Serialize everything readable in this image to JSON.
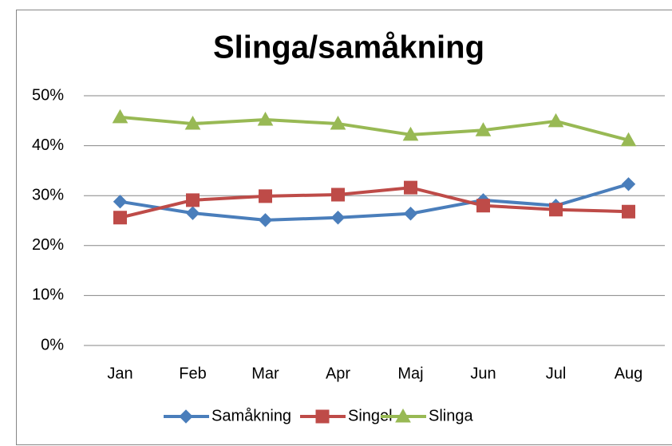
{
  "chart_data": {
    "type": "line",
    "title": "Slinga/samåkning",
    "categories": [
      "Jan",
      "Feb",
      "Mar",
      "Apr",
      "Maj",
      "Jun",
      "Jul",
      "Aug"
    ],
    "series": [
      {
        "name": "Samåkning",
        "color": "#4a7ebb",
        "marker": "diamond",
        "values": [
          28.8,
          26.5,
          25.1,
          25.6,
          26.4,
          29.1,
          28.0,
          32.3
        ]
      },
      {
        "name": "Singel",
        "color": "#be4b48",
        "marker": "square",
        "values": [
          25.6,
          29.1,
          29.9,
          30.2,
          31.6,
          28.0,
          27.2,
          26.8
        ]
      },
      {
        "name": "Slinga",
        "color": "#98b954",
        "marker": "triangle",
        "values": [
          45.7,
          44.4,
          45.2,
          44.4,
          42.2,
          43.1,
          44.9,
          41.1
        ]
      }
    ],
    "ylim": [
      0,
      50
    ],
    "yticks": [
      {
        "value": 0,
        "label": "0%"
      },
      {
        "value": 10,
        "label": "10%"
      },
      {
        "value": 20,
        "label": "20%"
      },
      {
        "value": 30,
        "label": "30%"
      },
      {
        "value": 40,
        "label": "40%"
      },
      {
        "value": 50,
        "label": "50%"
      }
    ],
    "grid": true,
    "legend": "bottom"
  }
}
